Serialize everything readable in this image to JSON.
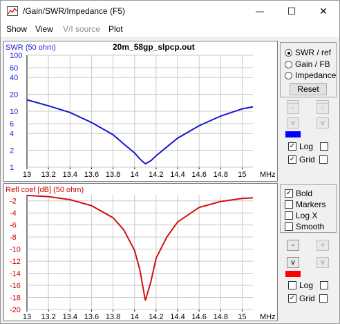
{
  "window": {
    "title": "/Gain/SWR/Impedance (F5)",
    "controls": {
      "minimize": "—",
      "maximize": "☐",
      "close": "✕"
    }
  },
  "menu": [
    {
      "label": "Show",
      "enabled": true
    },
    {
      "label": "View",
      "enabled": true
    },
    {
      "label": "V/I source",
      "enabled": false
    },
    {
      "label": "Plot",
      "enabled": true
    }
  ],
  "top_chart": {
    "filename": "20m_58gp_slpcp.out",
    "ylabel": "SWR (50 ohm)",
    "ylabel_color": "#1a1ad6",
    "line_color": "#1515d0",
    "y_ticks": [
      "100",
      "60",
      "40",
      "20",
      "10",
      "6",
      "4",
      "2",
      "1"
    ],
    "x_ticks": [
      "13",
      "13.2",
      "13.4",
      "13.6",
      "13.8",
      "14",
      "14.2",
      "14.4",
      "14.6",
      "14.8",
      "15"
    ],
    "x_unit": "MHz"
  },
  "bottom_chart": {
    "ylabel": "Refl coef [dB] (50 ohm)",
    "ylabel_color": "#cc0000",
    "line_color": "#d01010",
    "y_ticks": [
      "-2",
      "-4",
      "-6",
      "-8",
      "-10",
      "-12",
      "-14",
      "-16",
      "-18",
      "-20"
    ],
    "x_ticks": [
      "13",
      "13.2",
      "13.4",
      "13.6",
      "13.8",
      "14",
      "14.2",
      "14.4",
      "14.6",
      "14.8",
      "15"
    ],
    "x_unit": "MHz"
  },
  "chart_data": [
    {
      "type": "line",
      "title": "20m_58gp_slpcp.out",
      "ylabel": "SWR (50 ohm)",
      "xlabel": "MHz",
      "yscale": "log",
      "xlim": [
        13,
        15.1
      ],
      "ylim": [
        1,
        100
      ],
      "grid": true,
      "series": [
        {
          "x": [
            13.0,
            13.2,
            13.4,
            13.6,
            13.8,
            13.9,
            14.0,
            14.05,
            14.1,
            14.15,
            14.2,
            14.3,
            14.4,
            14.6,
            14.8,
            15.0,
            15.1
          ],
          "values": [
            16,
            12.5,
            9.5,
            6.3,
            3.8,
            2.6,
            1.8,
            1.4,
            1.15,
            1.3,
            1.6,
            2.3,
            3.3,
            5.5,
            8.2,
            11,
            12
          ]
        }
      ]
    },
    {
      "type": "line",
      "ylabel": "Refl coef [dB] (50 ohm)",
      "xlabel": "MHz",
      "xlim": [
        13,
        15.1
      ],
      "ylim": [
        -20,
        -1
      ],
      "grid": true,
      "series": [
        {
          "x": [
            13.0,
            13.2,
            13.4,
            13.6,
            13.8,
            13.9,
            14.0,
            14.05,
            14.1,
            14.15,
            14.2,
            14.3,
            14.4,
            14.6,
            14.8,
            15.0,
            15.1
          ],
          "values": [
            -1.1,
            -1.3,
            -1.8,
            -2.8,
            -4.8,
            -6.8,
            -10.2,
            -13.5,
            -18.5,
            -15.5,
            -11.5,
            -8.0,
            -5.5,
            -3.1,
            -2.1,
            -1.6,
            -1.5
          ]
        }
      ]
    }
  ],
  "top_side": {
    "radios": [
      {
        "label": "SWR / ref",
        "checked": true
      },
      {
        "label": "Gain / FB",
        "checked": false
      },
      {
        "label": "Impedance",
        "checked": false
      }
    ],
    "reset_label": "Reset",
    "spin_left": [
      "-",
      "-",
      "v"
    ],
    "spin_right": [
      "-",
      "-",
      "v"
    ],
    "swatch_color": "#0000ff",
    "checkboxes": [
      {
        "label": "Log",
        "checked": true
      },
      {
        "label": "Grid",
        "checked": true
      }
    ],
    "check_mark": "✓"
  },
  "bottom_side": {
    "options": [
      {
        "label": "Bold",
        "checked": true
      },
      {
        "label": "Markers",
        "checked": false
      },
      {
        "label": "Log X",
        "checked": false
      },
      {
        "label": "Smooth",
        "checked": false
      }
    ],
    "spin_left": [
      "-",
      "-",
      "v"
    ],
    "spin_right": [
      "+",
      "+",
      "v"
    ],
    "swatch_color": "#ff0000",
    "checkboxes": [
      {
        "label": "Log",
        "checked": false
      },
      {
        "label": "Grid",
        "checked": true
      }
    ]
  }
}
